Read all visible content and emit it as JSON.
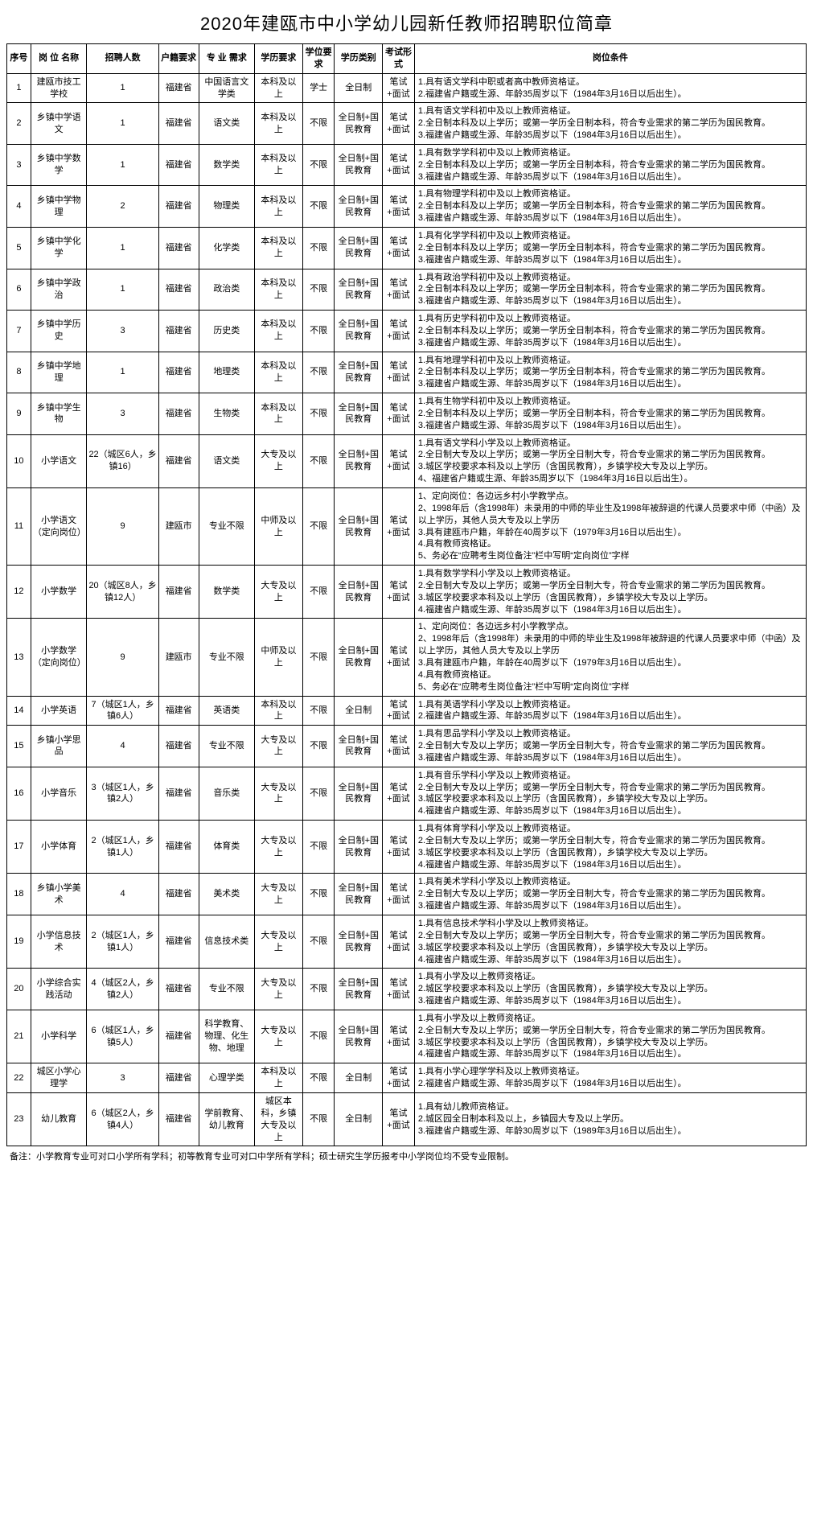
{
  "title": "2020年建瓯市中小学幼儿园新任教师招聘职位简章",
  "headers": {
    "idx": "序号",
    "name": "岗 位 名称",
    "num": "招聘人数",
    "huji": "户籍要求",
    "major": "专 业 需求",
    "edu": "学历要求",
    "deg": "学位要求",
    "cat": "学历类别",
    "exam": "考试形式",
    "cond": "岗位条件"
  },
  "rows": [
    {
      "idx": "1",
      "name": "建瓯市技工学校",
      "num": "1",
      "huji": "福建省",
      "major": "中国语言文学类",
      "edu": "本科及以上",
      "deg": "学士",
      "cat": "全日制",
      "exam": "笔试+面试",
      "cond": "1.具有语文学科中职或者高中教师资格证。\n2.福建省户籍或生源、年龄35周岁以下（1984年3月16日以后出生）。"
    },
    {
      "idx": "2",
      "name": "乡镇中学语文",
      "num": "1",
      "huji": "福建省",
      "major": "语文类",
      "edu": "本科及以上",
      "deg": "不限",
      "cat": "全日制+国民教育",
      "exam": "笔试+面试",
      "cond": "1.具有语文学科初中及以上教师资格证。\n2.全日制本科及以上学历；或第一学历全日制本科，符合专业需求的第二学历为国民教育。\n3.福建省户籍或生源、年龄35周岁以下（1984年3月16日以后出生）。"
    },
    {
      "idx": "3",
      "name": "乡镇中学数学",
      "num": "1",
      "huji": "福建省",
      "major": "数学类",
      "edu": "本科及以上",
      "deg": "不限",
      "cat": "全日制+国民教育",
      "exam": "笔试+面试",
      "cond": "1.具有数学学科初中及以上教师资格证。\n2.全日制本科及以上学历；或第一学历全日制本科，符合专业需求的第二学历为国民教育。\n3.福建省户籍或生源、年龄35周岁以下（1984年3月16日以后出生）。"
    },
    {
      "idx": "4",
      "name": "乡镇中学物理",
      "num": "2",
      "huji": "福建省",
      "major": "物理类",
      "edu": "本科及以上",
      "deg": "不限",
      "cat": "全日制+国民教育",
      "exam": "笔试+面试",
      "cond": "1.具有物理学科初中及以上教师资格证。\n2.全日制本科及以上学历；或第一学历全日制本科，符合专业需求的第二学历为国民教育。\n3.福建省户籍或生源、年龄35周岁以下（1984年3月16日以后出生）。"
    },
    {
      "idx": "5",
      "name": "乡镇中学化学",
      "num": "1",
      "huji": "福建省",
      "major": "化学类",
      "edu": "本科及以上",
      "deg": "不限",
      "cat": "全日制+国民教育",
      "exam": "笔试+面试",
      "cond": "1.具有化学学科初中及以上教师资格证。\n2.全日制本科及以上学历；或第一学历全日制本科，符合专业需求的第二学历为国民教育。\n3.福建省户籍或生源、年龄35周岁以下（1984年3月16日以后出生）。"
    },
    {
      "idx": "6",
      "name": "乡镇中学政治",
      "num": "1",
      "huji": "福建省",
      "major": "政治类",
      "edu": "本科及以上",
      "deg": "不限",
      "cat": "全日制+国民教育",
      "exam": "笔试+面试",
      "cond": "1.具有政治学科初中及以上教师资格证。\n2.全日制本科及以上学历；或第一学历全日制本科，符合专业需求的第二学历为国民教育。\n3.福建省户籍或生源、年龄35周岁以下（1984年3月16日以后出生）。"
    },
    {
      "idx": "7",
      "name": "乡镇中学历史",
      "num": "3",
      "huji": "福建省",
      "major": "历史类",
      "edu": "本科及以上",
      "deg": "不限",
      "cat": "全日制+国民教育",
      "exam": "笔试+面试",
      "cond": "1.具有历史学科初中及以上教师资格证。\n2.全日制本科及以上学历；或第一学历全日制本科，符合专业需求的第二学历为国民教育。\n3.福建省户籍或生源、年龄35周岁以下（1984年3月16日以后出生）。"
    },
    {
      "idx": "8",
      "name": "乡镇中学地理",
      "num": "1",
      "huji": "福建省",
      "major": "地理类",
      "edu": "本科及以上",
      "deg": "不限",
      "cat": "全日制+国民教育",
      "exam": "笔试+面试",
      "cond": "1.具有地理学科初中及以上教师资格证。\n2.全日制本科及以上学历；或第一学历全日制本科，符合专业需求的第二学历为国民教育。\n3.福建省户籍或生源、年龄35周岁以下（1984年3月16日以后出生）。"
    },
    {
      "idx": "9",
      "name": "乡镇中学生物",
      "num": "3",
      "huji": "福建省",
      "major": "生物类",
      "edu": "本科及以上",
      "deg": "不限",
      "cat": "全日制+国民教育",
      "exam": "笔试+面试",
      "cond": "1.具有生物学科初中及以上教师资格证。\n2.全日制本科及以上学历；或第一学历全日制本科，符合专业需求的第二学历为国民教育。\n3.福建省户籍或生源、年龄35周岁以下（1984年3月16日以后出生）。"
    },
    {
      "idx": "10",
      "name": "小学语文",
      "num": "22（城区6人，乡镇16）",
      "huji": "福建省",
      "major": "语文类",
      "edu": "大专及以上",
      "deg": "不限",
      "cat": "全日制+国民教育",
      "exam": "笔试+面试",
      "cond": "1.具有语文学科小学及以上教师资格证。\n2.全日制大专及以上学历；或第一学历全日制大专，符合专业需求的第二学历为国民教育。\n3.城区学校要求本科及以上学历（含国民教育），乡镇学校大专及以上学历。\n4、福建省户籍或生源、年龄35周岁以下（1984年3月16日以后出生）。"
    },
    {
      "idx": "11",
      "name": "小学语文（定向岗位）",
      "num": "9",
      "huji": "建瓯市",
      "major": "专业不限",
      "edu": "中师及以上",
      "deg": "不限",
      "cat": "全日制+国民教育",
      "exam": "笔试+面试",
      "cond": "1、定向岗位：各边远乡村小学教学点。\n2、1998年后（含1998年）未录用的中师的毕业生及1998年被辞退的代课人员要求中师（中函）及以上学历，其他人员大专及以上学历\n3.具有建瓯市户籍，年龄在40周岁以下（1979年3月16日以后出生）。\n4.具有教师资格证。\n5、务必在“应聘考生岗位备注”栏中写明“定向岗位”字样"
    },
    {
      "idx": "12",
      "name": "小学数学",
      "num": "20（城区8人，乡镇12人）",
      "huji": "福建省",
      "major": "数学类",
      "edu": "大专及以上",
      "deg": "不限",
      "cat": "全日制+国民教育",
      "exam": "笔试+面试",
      "cond": "1.具有数学学科小学及以上教师资格证。\n2.全日制大专及以上学历；或第一学历全日制大专，符合专业需求的第二学历为国民教育。\n3.城区学校要求本科及以上学历（含国民教育），乡镇学校大专及以上学历。\n4.福建省户籍或生源、年龄35周岁以下（1984年3月16日以后出生）。"
    },
    {
      "idx": "13",
      "name": "小学数学（定向岗位）",
      "num": "9",
      "huji": "建瓯市",
      "major": "专业不限",
      "edu": "中师及以上",
      "deg": "不限",
      "cat": "全日制+国民教育",
      "exam": "笔试+面试",
      "cond": "1、定向岗位：各边远乡村小学教学点。\n2、1998年后（含1998年）未录用的中师的毕业生及1998年被辞退的代课人员要求中师（中函）及以上学历，其他人员大专及以上学历\n3.具有建瓯市户籍，年龄在40周岁以下（1979年3月16日以后出生）。\n4.具有教师资格证。\n5、务必在“应聘考生岗位备注”栏中写明“定向岗位”字样"
    },
    {
      "idx": "14",
      "name": "小学英语",
      "num": "7（城区1人，乡镇6人）",
      "huji": "福建省",
      "major": "英语类",
      "edu": "本科及以上",
      "deg": "不限",
      "cat": "全日制",
      "exam": "笔试+面试",
      "cond": "1.具有英语学科小学及以上教师资格证。\n2.福建省户籍或生源、年龄35周岁以下（1984年3月16日以后出生）。"
    },
    {
      "idx": "15",
      "name": "乡镇小学思品",
      "num": "4",
      "huji": "福建省",
      "major": "专业不限",
      "edu": "大专及以上",
      "deg": "不限",
      "cat": "全日制+国民教育",
      "exam": "笔试+面试",
      "cond": "1.具有思品学科小学及以上教师资格证。\n2.全日制大专及以上学历；或第一学历全日制大专，符合专业需求的第二学历为国民教育。\n3.福建省户籍或生源、年龄35周岁以下（1984年3月16日以后出生）。"
    },
    {
      "idx": "16",
      "name": "小学音乐",
      "num": "3（城区1人，乡镇2人）",
      "huji": "福建省",
      "major": "音乐类",
      "edu": "大专及以上",
      "deg": "不限",
      "cat": "全日制+国民教育",
      "exam": "笔试+面试",
      "cond": "1.具有音乐学科小学及以上教师资格证。\n2.全日制大专及以上学历；或第一学历全日制大专，符合专业需求的第二学历为国民教育。\n3.城区学校要求本科及以上学历（含国民教育），乡镇学校大专及以上学历。\n4.福建省户籍或生源、年龄35周岁以下（1984年3月16日以后出生）。"
    },
    {
      "idx": "17",
      "name": "小学体育",
      "num": "2（城区1人，乡镇1人）",
      "huji": "福建省",
      "major": "体育类",
      "edu": "大专及以上",
      "deg": "不限",
      "cat": "全日制+国民教育",
      "exam": "笔试+面试",
      "cond": "1.具有体育学科小学及以上教师资格证。\n2.全日制大专及以上学历；或第一学历全日制大专，符合专业需求的第二学历为国民教育。\n3.城区学校要求本科及以上学历（含国民教育），乡镇学校大专及以上学历。\n4.福建省户籍或生源、年龄35周岁以下（1984年3月16日以后出生）。"
    },
    {
      "idx": "18",
      "name": "乡镇小学美术",
      "num": "4",
      "huji": "福建省",
      "major": "美术类",
      "edu": "大专及以上",
      "deg": "不限",
      "cat": "全日制+国民教育",
      "exam": "笔试+面试",
      "cond": "1.具有美术学科小学及以上教师资格证。\n2.全日制大专及以上学历；或第一学历全日制大专，符合专业需求的第二学历为国民教育。\n3.福建省户籍或生源、年龄35周岁以下（1984年3月16日以后出生）。"
    },
    {
      "idx": "19",
      "name": "小学信息技术",
      "num": "2（城区1人，乡镇1人）",
      "huji": "福建省",
      "major": "信息技术类",
      "edu": "大专及以上",
      "deg": "不限",
      "cat": "全日制+国民教育",
      "exam": "笔试+面试",
      "cond": "1.具有信息技术学科小学及以上教师资格证。\n2.全日制大专及以上学历；或第一学历全日制大专，符合专业需求的第二学历为国民教育。\n3.城区学校要求本科及以上学历（含国民教育），乡镇学校大专及以上学历。\n4.福建省户籍或生源、年龄35周岁以下（1984年3月16日以后出生）。"
    },
    {
      "idx": "20",
      "name": "小学综合实践活动",
      "num": "4（城区2人，乡镇2人）",
      "huji": "福建省",
      "major": "专业不限",
      "edu": "大专及以上",
      "deg": "不限",
      "cat": "全日制+国民教育",
      "exam": "笔试+面试",
      "cond": "1.具有小学及以上教师资格证。\n2.城区学校要求本科及以上学历（含国民教育），乡镇学校大专及以上学历。\n3.福建省户籍或生源、年龄35周岁以下（1984年3月16日以后出生）。"
    },
    {
      "idx": "21",
      "name": "小学科学",
      "num": "6（城区1人，乡镇5人）",
      "huji": "福建省",
      "major": "科学教育、物理、化生物、地理",
      "edu": "大专及以上",
      "deg": "不限",
      "cat": "全日制+国民教育",
      "exam": "笔试+面试",
      "cond": "1.具有小学及以上教师资格证。\n2.全日制大专及以上学历；或第一学历全日制大专，符合专业需求的第二学历为国民教育。\n3.城区学校要求本科及以上学历（含国民教育），乡镇学校大专及以上学历。\n4.福建省户籍或生源、年龄35周岁以下（1984年3月16日以后出生）。"
    },
    {
      "idx": "22",
      "name": "城区小学心理学",
      "num": "3",
      "huji": "福建省",
      "major": "心理学类",
      "edu": "本科及以上",
      "deg": "不限",
      "cat": "全日制",
      "exam": "笔试+面试",
      "cond": "1.具有小学心理学学科及以上教师资格证。\n2.福建省户籍或生源、年龄35周岁以下（1984年3月16日以后出生）。"
    },
    {
      "idx": "23",
      "name": "幼儿教育",
      "num": "6（城区2人，乡镇4人）",
      "huji": "福建省",
      "major": "学前教育、幼儿教育",
      "edu": "城区本科，乡镇大专及以上",
      "deg": "不限",
      "cat": "全日制",
      "exam": "笔试+面试",
      "cond": "1.具有幼儿教师资格证。\n2.城区园全日制本科及以上，乡镇园大专及以上学历。\n3.福建省户籍或生源、年龄30周岁以下（1989年3月16日以后出生）。"
    }
  ],
  "note": "备注：小学教育专业可对口小学所有学科；初等教育专业可对口中学所有学科；硕士研究生学历报考中小学岗位均不受专业限制。"
}
